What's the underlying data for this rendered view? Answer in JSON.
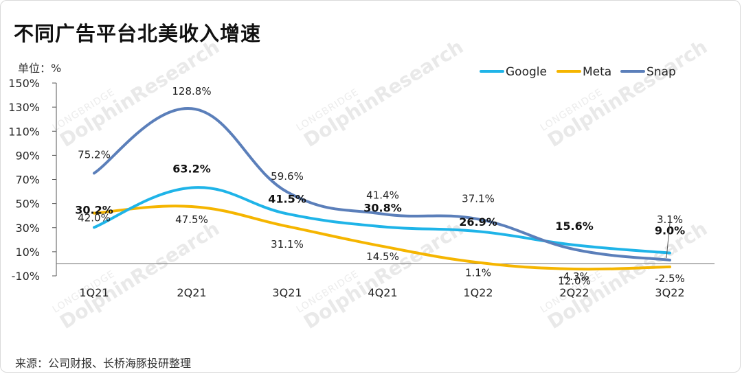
{
  "title": "不同广告平台北美收入增速",
  "unit": "单位：%",
  "source": "来源：公司财报、长桥海豚投研整理",
  "watermark": {
    "brand": "DolphinResearch",
    "sub": "LONGBRIDGE"
  },
  "chart_data": {
    "type": "line",
    "categories": [
      "1Q21",
      "2Q21",
      "3Q21",
      "4Q21",
      "1Q22",
      "2Q22",
      "3Q22"
    ],
    "ylim": [
      -10,
      150
    ],
    "yticks": [
      "150%",
      "130%",
      "110%",
      "90%",
      "70%",
      "50%",
      "30%",
      "10%",
      "-10%"
    ],
    "legend_position": "top-right",
    "series": [
      {
        "name": "Google",
        "color": "#1fb4e8",
        "values": [
          30.2,
          63.2,
          41.5,
          30.8,
          26.9,
          15.6,
          9.0
        ],
        "labels": [
          "30.2%",
          "63.2%",
          "41.5%",
          "30.8%",
          "26.9%",
          "15.6%",
          "9.0%"
        ]
      },
      {
        "name": "Meta",
        "color": "#f5b500",
        "values": [
          42.0,
          47.5,
          31.1,
          14.5,
          1.1,
          -4.3,
          -2.5
        ],
        "labels": [
          "42.0%",
          "47.5%",
          "31.1%",
          "14.5%",
          "1.1%",
          "-4.3%",
          "-2.5%"
        ]
      },
      {
        "name": "Snap",
        "color": "#5b7fba",
        "values": [
          75.2,
          128.8,
          59.6,
          41.4,
          37.1,
          12.0,
          3.1
        ],
        "labels": [
          "75.2%",
          "128.8%",
          "59.6%",
          "41.4%",
          "37.1%",
          "12.0%",
          "3.1%"
        ]
      }
    ]
  }
}
